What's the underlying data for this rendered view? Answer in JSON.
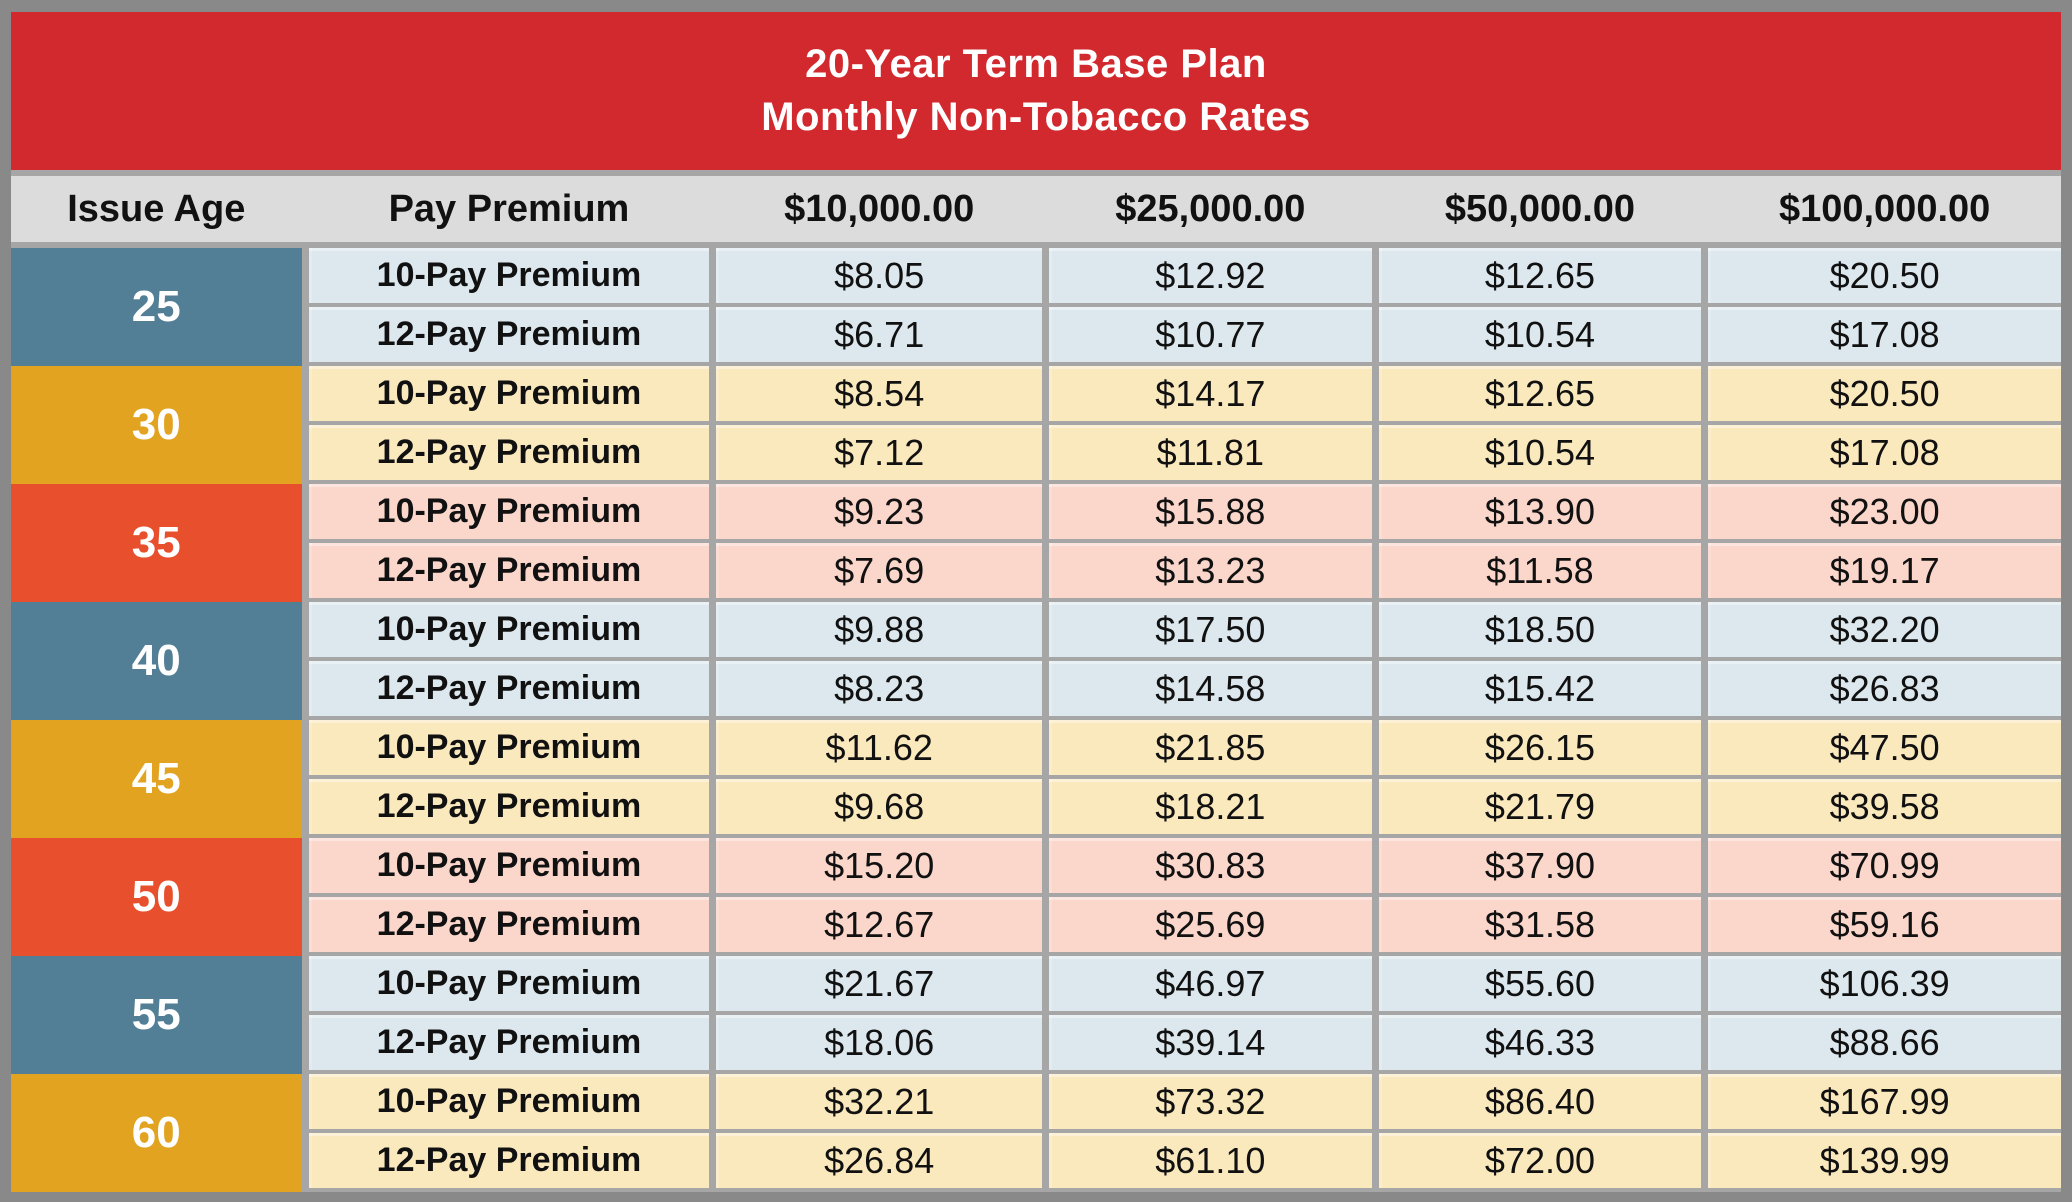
{
  "title": {
    "line1": "20-Year Term Base Plan",
    "line2": "Monthly Non-Tobacco Rates"
  },
  "chart_data": {
    "type": "table",
    "title": "20-Year Term Base Plan",
    "subtitle": "Monthly Non-Tobacco Rates",
    "columns": [
      "Issue Age",
      "Pay Premium",
      "$10,000.00",
      "$25,000.00",
      "$50,000.00",
      "$100,000.00"
    ],
    "groups": [
      {
        "age": "25",
        "theme": "blue",
        "rows": [
          {
            "label": "10-Pay Premium",
            "values": [
              "$8.05",
              "$12.92",
              "$12.65",
              "$20.50"
            ]
          },
          {
            "label": "12-Pay Premium",
            "values": [
              "$6.71",
              "$10.77",
              "$10.54",
              "$17.08"
            ]
          }
        ]
      },
      {
        "age": "30",
        "theme": "gold",
        "rows": [
          {
            "label": "10-Pay Premium",
            "values": [
              "$8.54",
              "$14.17",
              "$12.65",
              "$20.50"
            ]
          },
          {
            "label": "12-Pay Premium",
            "values": [
              "$7.12",
              "$11.81",
              "$10.54",
              "$17.08"
            ]
          }
        ]
      },
      {
        "age": "35",
        "theme": "orange",
        "rows": [
          {
            "label": "10-Pay Premium",
            "values": [
              "$9.23",
              "$15.88",
              "$13.90",
              "$23.00"
            ]
          },
          {
            "label": "12-Pay Premium",
            "values": [
              "$7.69",
              "$13.23",
              "$11.58",
              "$19.17"
            ]
          }
        ]
      },
      {
        "age": "40",
        "theme": "blue",
        "rows": [
          {
            "label": "10-Pay Premium",
            "values": [
              "$9.88",
              "$17.50",
              "$18.50",
              "$32.20"
            ]
          },
          {
            "label": "12-Pay Premium",
            "values": [
              "$8.23",
              "$14.58",
              "$15.42",
              "$26.83"
            ]
          }
        ]
      },
      {
        "age": "45",
        "theme": "gold",
        "rows": [
          {
            "label": "10-Pay Premium",
            "values": [
              "$11.62",
              "$21.85",
              "$26.15",
              "$47.50"
            ]
          },
          {
            "label": "12-Pay Premium",
            "values": [
              "$9.68",
              "$18.21",
              "$21.79",
              "$39.58"
            ]
          }
        ]
      },
      {
        "age": "50",
        "theme": "orange",
        "rows": [
          {
            "label": "10-Pay Premium",
            "values": [
              "$15.20",
              "$30.83",
              "$37.90",
              "$70.99"
            ]
          },
          {
            "label": "12-Pay Premium",
            "values": [
              "$12.67",
              "$25.69",
              "$31.58",
              "$59.16"
            ]
          }
        ]
      },
      {
        "age": "55",
        "theme": "blue",
        "rows": [
          {
            "label": "10-Pay Premium",
            "values": [
              "$21.67",
              "$46.97",
              "$55.60",
              "$106.39"
            ]
          },
          {
            "label": "12-Pay Premium",
            "values": [
              "$18.06",
              "$39.14",
              "$46.33",
              "$88.66"
            ]
          }
        ]
      },
      {
        "age": "60",
        "theme": "gold",
        "rows": [
          {
            "label": "10-Pay Premium",
            "values": [
              "$32.21",
              "$73.32",
              "$86.40",
              "$167.99"
            ]
          },
          {
            "label": "12-Pay Premium",
            "values": [
              "$26.84",
              "$61.10",
              "$72.00",
              "$139.99"
            ]
          }
        ]
      }
    ]
  },
  "colors": {
    "banner_red": "#D2292E",
    "header_gray": "#DCDCDC",
    "age_blue": "#527E96",
    "age_gold": "#E2A321",
    "age_orange": "#E8502D",
    "row_blue": "#DCE8EE",
    "row_cream": "#FBE9BE",
    "row_pink": "#FAD6CB",
    "grid_gray": "#A6A6A6",
    "frame_gray": "#898989",
    "text_dark": "#111111",
    "text_white": "#FFFFFF"
  }
}
